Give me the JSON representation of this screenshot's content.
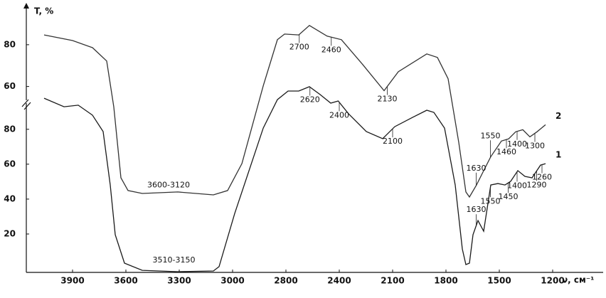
{
  "chart_data": {
    "type": "line",
    "y_label": "T, %",
    "x_label": "ν, см⁻¹",
    "xlim": [
      4160,
      948
    ],
    "xticks": [
      3900,
      3600,
      3300,
      3000,
      2800,
      2400,
      2100,
      1800,
      1500,
      1200
    ],
    "ylim": [
      -2,
      150
    ],
    "yticks": [
      20,
      40,
      60,
      80
    ],
    "y2lim": [
      -29,
      98
    ],
    "y2ticks": [
      60,
      80
    ],
    "series": [
      {
        "name": "1",
        "color": "#1a1a1a",
        "x": [
          4060,
          3948,
          3868,
          3788,
          3728,
          3688,
          3660,
          3608,
          3508,
          3308,
          3108,
          3076,
          2992,
          2885,
          2832,
          2784,
          2704,
          2624,
          2544,
          2464,
          2408,
          2348,
          2248,
          2156,
          2088,
          1988,
          1908,
          1868,
          1808,
          1748,
          1708,
          1688,
          1668,
          1648,
          1620,
          1588,
          1548,
          1508,
          1468,
          1436,
          1396,
          1356,
          1316,
          1268,
          1240
        ],
        "values": [
          97.8,
          92.9,
          93.8,
          88.1,
          78.7,
          48.1,
          19.6,
          3.3,
          -0.8,
          -1.6,
          -1.2,
          1.3,
          31.8,
          80.7,
          97.0,
          101.9,
          101.9,
          104.4,
          99.9,
          95.0,
          96.2,
          88.9,
          78.7,
          74.6,
          81.5,
          86.8,
          90.9,
          89.7,
          80.7,
          48.1,
          11.4,
          2.5,
          3.3,
          19.6,
          27.7,
          21.6,
          48.1,
          48.9,
          48.1,
          50.2,
          56.3,
          53.0,
          52.2,
          59.5,
          60.3
        ],
        "annotations": [
          "3510-3150",
          "2620",
          "2400",
          "2100",
          "1630",
          "1550",
          "1450",
          "1400",
          "1290",
          "1260"
        ]
      },
      {
        "name": "2",
        "color": "#333333",
        "axis": "y2",
        "x": [
          4060,
          3900,
          3788,
          3708,
          3668,
          3628,
          3588,
          3508,
          3308,
          3108,
          3028,
          2965,
          2885,
          2832,
          2805,
          2704,
          2624,
          2491,
          2388,
          2268,
          2148,
          2068,
          1908,
          1848,
          1788,
          1728,
          1688,
          1668,
          1628,
          1588,
          1548,
          1488,
          1448,
          1408,
          1368,
          1328,
          1288,
          1240
        ],
        "values": [
          84.7,
          82.0,
          78.6,
          72.2,
          50.2,
          16.3,
          10.2,
          8.8,
          9.5,
          8.1,
          10.2,
          23.1,
          60.3,
          82.4,
          85.1,
          84.7,
          89.2,
          84.1,
          82.4,
          70.5,
          58.0,
          67.1,
          75.6,
          73.9,
          63.7,
          33.2,
          9.5,
          7.1,
          12.9,
          19.7,
          26.4,
          33.9,
          34.9,
          38.3,
          39.3,
          35.9,
          38.3,
          41.7
        ],
        "annotations": [
          "3600-3120",
          "2700",
          "2460",
          "2130",
          "1630",
          "1550",
          "1460",
          "1400",
          "1300"
        ]
      }
    ]
  }
}
